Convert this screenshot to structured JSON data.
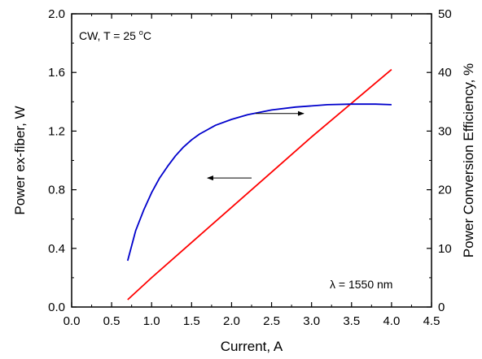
{
  "chart_data": {
    "type": "line",
    "xlabel": "Current, A",
    "ylabel_left": "Power ex-fiber, W",
    "ylabel_right": "Power Conversion Efficiency, %",
    "xlim": [
      0.0,
      4.5
    ],
    "ylim_left": [
      0.0,
      2.0
    ],
    "ylim_right": [
      0,
      50
    ],
    "x_ticks": [
      "0.0",
      "0.5",
      "1.0",
      "1.5",
      "2.0",
      "2.5",
      "3.0",
      "3.5",
      "4.0",
      "4.5"
    ],
    "y_left_ticks": [
      "0.0",
      "0.4",
      "0.8",
      "1.2",
      "1.6",
      "2.0"
    ],
    "y_right_ticks": [
      "0",
      "10",
      "20",
      "30",
      "40",
      "50"
    ],
    "grid": false,
    "annotations": {
      "condition_prefix": "CW, T = 25 ",
      "condition_deg": "o",
      "condition_unit": "C",
      "wavelength_symbol": "λ",
      "wavelength_text": " = 1550 nm"
    },
    "series": [
      {
        "axis": "left",
        "color": "#ff0000",
        "x": [
          0.7,
          1.0,
          1.5,
          2.0,
          2.5,
          3.0,
          3.5,
          4.0
        ],
        "y": [
          0.05,
          0.2,
          0.44,
          0.68,
          0.92,
          1.16,
          1.39,
          1.62
        ]
      },
      {
        "axis": "right",
        "color": "#0000cc",
        "x": [
          0.7,
          0.8,
          0.9,
          1.0,
          1.1,
          1.2,
          1.3,
          1.4,
          1.5,
          1.6,
          1.8,
          2.0,
          2.2,
          2.5,
          2.8,
          3.0,
          3.2,
          3.5,
          3.8,
          4.0
        ],
        "y": [
          7.9,
          13.0,
          16.5,
          19.5,
          22.0,
          24.0,
          25.8,
          27.3,
          28.5,
          29.5,
          31.0,
          32.0,
          32.8,
          33.6,
          34.1,
          34.3,
          34.5,
          34.6,
          34.6,
          34.5
        ]
      }
    ],
    "arrows": [
      {
        "points_to": "right",
        "x_from": 2.3,
        "x_to": 2.9,
        "y_right": 33.0
      },
      {
        "points_to": "left",
        "x_from": 2.25,
        "x_to": 1.7,
        "y_left": 0.88
      }
    ]
  }
}
